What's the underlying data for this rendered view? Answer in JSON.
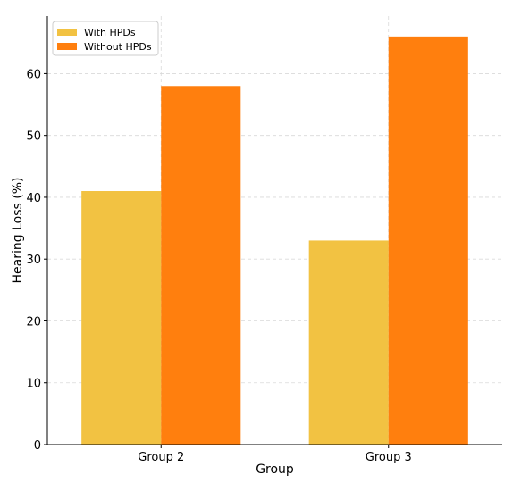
{
  "chart_data": {
    "type": "bar",
    "title": "",
    "xlabel": "Group",
    "ylabel": "Hearing Loss (%)",
    "categories": [
      "Group 2",
      "Group 3"
    ],
    "series": [
      {
        "name": "With HPDs",
        "values": [
          41,
          33
        ],
        "color": "#F2C242"
      },
      {
        "name": "Without HPDs",
        "values": [
          58,
          66
        ],
        "color": "#FF7F0E"
      }
    ],
    "ylim": [
      0,
      69.3
    ],
    "yticks": [
      0,
      10,
      20,
      30,
      40,
      50,
      60
    ],
    "grid": true,
    "legend_position": "top-left"
  }
}
